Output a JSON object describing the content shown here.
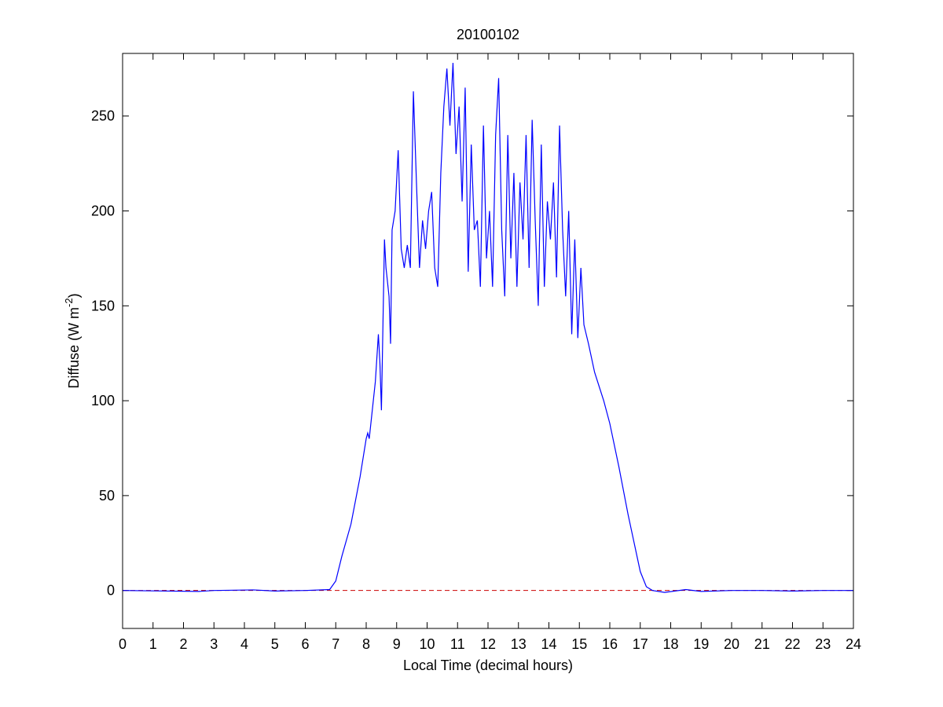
{
  "chart_data": {
    "type": "line",
    "title": "20100102",
    "xlabel": "Local Time (decimal hours)",
    "ylabel": {
      "text": "Diffuse (W m",
      "superscript": "-2",
      "suffix": ")"
    },
    "color": "#0000ff",
    "x": [
      0,
      2.5,
      3,
      4.3,
      5,
      6,
      6.8,
      7,
      7.2,
      7.5,
      7.8,
      8,
      8.05,
      8.1,
      8.2,
      8.3,
      8.4,
      8.45,
      8.5,
      8.55,
      8.6,
      8.65,
      8.75,
      8.8,
      8.85,
      8.95,
      9.05,
      9.15,
      9.25,
      9.35,
      9.45,
      9.55,
      9.65,
      9.75,
      9.85,
      9.95,
      10.05,
      10.15,
      10.25,
      10.35,
      10.45,
      10.55,
      10.65,
      10.75,
      10.85,
      10.95,
      11.05,
      11.15,
      11.25,
      11.35,
      11.45,
      11.55,
      11.65,
      11.75,
      11.85,
      11.95,
      12.05,
      12.15,
      12.25,
      12.35,
      12.45,
      12.55,
      12.65,
      12.75,
      12.85,
      12.95,
      13.05,
      13.15,
      13.25,
      13.35,
      13.45,
      13.55,
      13.65,
      13.75,
      13.85,
      13.95,
      14.05,
      14.15,
      14.25,
      14.35,
      14.45,
      14.55,
      14.65,
      14.75,
      14.85,
      14.95,
      15.05,
      15.15,
      15.3,
      15.5,
      15.8,
      16,
      16.3,
      16.6,
      16.8,
      17,
      17.2,
      17.4,
      17.8,
      18.5,
      19,
      20,
      21,
      22,
      23,
      24
    ],
    "values": [
      0,
      -0.5,
      0,
      0.3,
      -0.3,
      0,
      0.5,
      5,
      18,
      35,
      60,
      80,
      83,
      80,
      95,
      110,
      135,
      120,
      95,
      140,
      185,
      170,
      155,
      130,
      190,
      200,
      232,
      180,
      170,
      182,
      170,
      263,
      215,
      170,
      195,
      180,
      200,
      210,
      170,
      160,
      220,
      255,
      275,
      245,
      278,
      230,
      255,
      205,
      265,
      168,
      235,
      190,
      195,
      160,
      245,
      175,
      200,
      160,
      240,
      270,
      190,
      155,
      240,
      175,
      220,
      160,
      215,
      185,
      240,
      170,
      248,
      195,
      150,
      235,
      160,
      205,
      185,
      215,
      165,
      245,
      190,
      155,
      200,
      135,
      185,
      133,
      170,
      140,
      130,
      115,
      100,
      88,
      65,
      40,
      25,
      10,
      2,
      0,
      -1,
      0.5,
      -0.5,
      0,
      0,
      -0.3,
      0,
      0
    ],
    "hline": {
      "y": 0,
      "color": "#cc0000"
    },
    "xlim": [
      0,
      24
    ],
    "ylim": [
      -20,
      283
    ],
    "xticks": [
      0,
      1,
      2,
      3,
      4,
      5,
      6,
      7,
      8,
      9,
      10,
      11,
      12,
      13,
      14,
      15,
      16,
      17,
      18,
      19,
      20,
      21,
      22,
      23,
      24
    ],
    "yticks": [
      0,
      50,
      100,
      150,
      200,
      250
    ]
  }
}
